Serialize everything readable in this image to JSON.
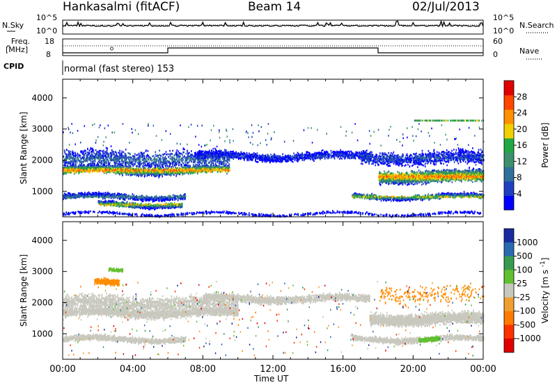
{
  "header": {
    "title": "Hankasalmi (fitACF)",
    "beam": "Beam 14",
    "date": "02/Jul/2013"
  },
  "sky_panel": {
    "left_label": "N.Sky",
    "right_label": "N.Search",
    "left_ticks": [
      "10^5",
      "10^0"
    ],
    "right_ticks": [
      "10^5",
      "10^0"
    ]
  },
  "freq_panel": {
    "left_label_1": "Freq.",
    "left_label_2": "[MHz]",
    "left_ticks": [
      "18",
      "8"
    ],
    "right_ticks": [
      "60",
      "0"
    ],
    "right_label": "Nave",
    "cpid_label": "CPID",
    "mode_text": "normal (fast stereo) 153"
  },
  "x_axis": {
    "label": "Time UT",
    "ticks": [
      "00:00",
      "04:00",
      "08:00",
      "12:00",
      "16:00",
      "20:00",
      "00:00"
    ]
  },
  "colors": {
    "power": [
      "#0000ff",
      "#1d3fc0",
      "#2f6f9a",
      "#3d8f6e",
      "#22a842",
      "#f0d000",
      "#ff9000",
      "#ff4500",
      "#e00000"
    ],
    "velocity": [
      "#1a2aa0",
      "#2a6ab0",
      "#3a9a50",
      "#60c030",
      "#c8c8be",
      "#f0a030",
      "#ff7a00",
      "#ff3000",
      "#e00000"
    ],
    "ground_scatter": "#c8c8be"
  },
  "chart_data": [
    {
      "type": "heatmap",
      "title": "",
      "xlabel": "Time UT",
      "ylabel": "Slant Range [km]",
      "xlim": [
        0,
        24
      ],
      "ylim": [
        180,
        4600
      ],
      "y_ticks": [
        "1000",
        "2000",
        "3000",
        "4000"
      ],
      "colorbar": {
        "label": "Power [dB]",
        "ticks": [
          "28",
          "24",
          "20",
          "16",
          "12",
          "8",
          "4"
        ],
        "range": [
          0,
          30
        ]
      },
      "regions": [
        {
          "t_start": 0.0,
          "t_end": 9.5,
          "range_center_km": 1700,
          "peak_db": 26
        },
        {
          "t_start": 8.0,
          "t_end": 17.5,
          "range_center_km": 2100,
          "peak_db": 10
        },
        {
          "t_start": 2.0,
          "t_end": 6.8,
          "range_center_km": 600,
          "peak_db": 24
        },
        {
          "t_start": 18.0,
          "t_end": 24.0,
          "range_center_km": 1400,
          "peak_db": 26
        },
        {
          "t_start": 16.5,
          "t_end": 24.0,
          "range_center_km": 850,
          "peak_db": 22
        }
      ]
    },
    {
      "type": "heatmap",
      "title": "",
      "xlabel": "Time UT",
      "ylabel": "Slant Range [km]",
      "xlim": [
        0,
        24
      ],
      "ylim": [
        180,
        4600
      ],
      "y_ticks": [
        "1000",
        "2000",
        "3000",
        "4000"
      ],
      "colorbar": {
        "label_text": "Velocity [m s",
        "label_sup": "-1",
        "label_end": "]",
        "ticks": [
          "1000",
          "500",
          "100",
          "25",
          "-25",
          "-100",
          "-500",
          "-1000"
        ],
        "range": [
          -1000,
          1000
        ]
      },
      "regions": [
        {
          "t_start": 0.0,
          "t_end": 10.0,
          "range_center_km": 1700,
          "velocity": 0
        },
        {
          "t_start": 1.8,
          "t_end": 3.2,
          "range_center_km": 2650,
          "velocity": -300
        },
        {
          "t_start": 2.5,
          "t_end": 3.5,
          "range_center_km": 3050,
          "velocity": 150
        },
        {
          "t_start": 20.5,
          "t_end": 21.5,
          "range_center_km": 850,
          "velocity": 120
        }
      ]
    }
  ]
}
